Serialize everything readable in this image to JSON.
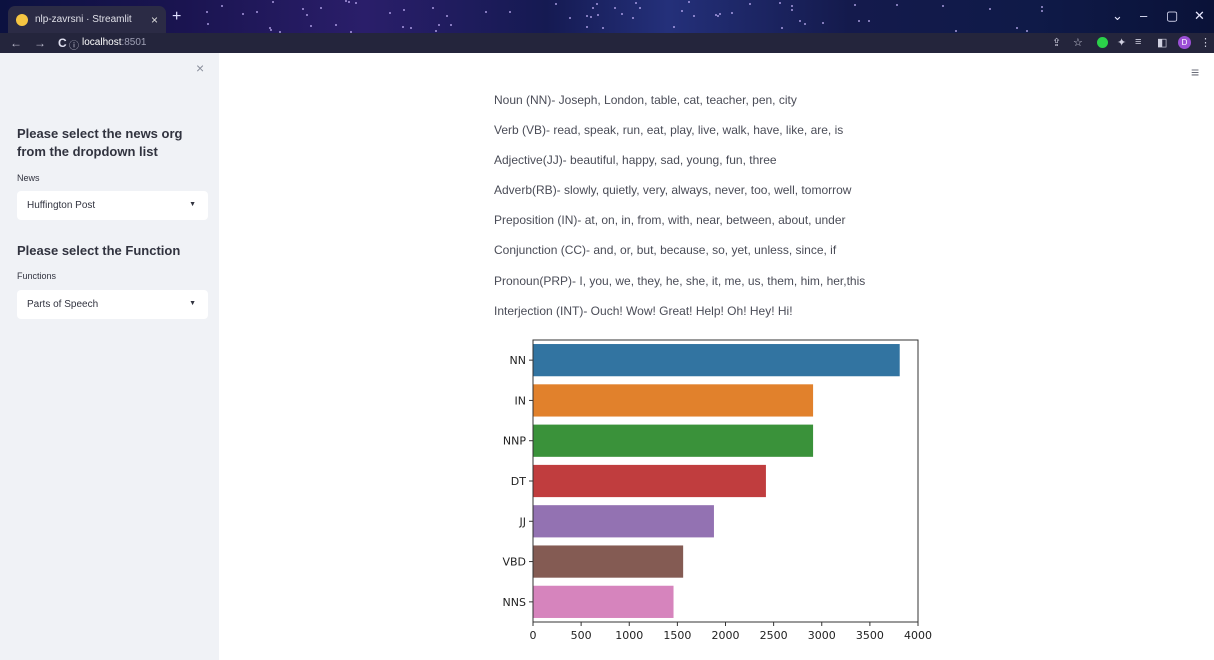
{
  "browser": {
    "tab_title": "nlp-zavrsni · Streamlit",
    "tab_close": "×",
    "new_tab": "+",
    "url_host": "localhost",
    "url_port": ":8501",
    "back_icon": "←",
    "forward_icon": "→",
    "reload_icon": "C",
    "info_icon": "ⓘ",
    "avatar_letter": "D",
    "win_min": "–",
    "win_restore": "▢",
    "win_close": "✕",
    "win_chevron": "⌄"
  },
  "sidebar": {
    "close": "×",
    "news_heading": "Please select the news org from the dropdown list",
    "news_label": "News",
    "news_value": "Huffington Post",
    "function_heading": "Please select the Function",
    "function_label": "Functions",
    "function_value": "Parts of Speech"
  },
  "main": {
    "menu": "≡",
    "pos_lines": [
      "Noun (NN)- Joseph, London, table, cat, teacher, pen, city",
      "Verb (VB)- read, speak, run, eat, play, live, walk, have, like, are, is",
      "Adjective(JJ)- beautiful, happy, sad, young, fun, three",
      "Adverb(RB)- slowly, quietly, very, always, never, too, well, tomorrow",
      "Preposition (IN)- at, on, in, from, with, near, between, about, under",
      "Conjunction (CC)- and, or, but, because, so, yet, unless, since, if",
      "Pronoun(PRP)- I, you, we, they, he, she, it, me, us, them, him, her,this",
      "Interjection (INT)- Ouch! Wow! Great! Help! Oh! Hey! Hi!"
    ]
  },
  "chart_data": {
    "type": "bar",
    "orientation": "horizontal",
    "categories": [
      "NN",
      "IN",
      "NNP",
      "DT",
      "JJ",
      "VBD",
      "NNS"
    ],
    "values": [
      3810,
      2910,
      2910,
      2420,
      1880,
      1560,
      1460
    ],
    "colors": [
      "#3274a1",
      "#e1812c",
      "#3a923a",
      "#c03d3e",
      "#9372b2",
      "#845b53",
      "#d684bd"
    ],
    "xlim": [
      0,
      4000
    ],
    "xticks": [
      0,
      500,
      1000,
      1500,
      2000,
      2500,
      3000,
      3500,
      4000
    ],
    "title": "",
    "xlabel": "",
    "ylabel": ""
  }
}
